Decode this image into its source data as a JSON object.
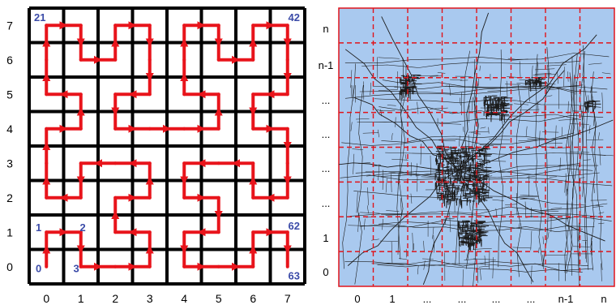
{
  "left_diagram": {
    "y_labels": [
      "7",
      "6",
      "5",
      "4",
      "3",
      "2",
      "1",
      "0"
    ],
    "x_labels": [
      "0",
      "1",
      "2",
      "3",
      "4",
      "5",
      "6",
      "7"
    ],
    "cell_numbers": [
      {
        "text": "21",
        "cell": [
          0,
          7
        ]
      },
      {
        "text": "42",
        "cell": [
          7,
          7
        ]
      },
      {
        "text": "1",
        "cell": [
          0,
          1
        ]
      },
      {
        "text": "2",
        "cell": [
          1,
          1
        ]
      },
      {
        "text": "0",
        "cell": [
          0,
          0
        ]
      },
      {
        "text": "3",
        "cell": [
          1,
          0
        ]
      },
      {
        "text": "62",
        "cell": [
          7,
          1
        ]
      },
      {
        "text": "63",
        "cell": [
          7,
          0
        ]
      }
    ],
    "colors": {
      "grid": "#000000",
      "curve": "#e8141b",
      "numbers": "#3b4ba8"
    }
  },
  "right_diagram": {
    "y_labels": [
      "n",
      "n-1",
      "...",
      "...",
      "...",
      "...",
      "1",
      "0"
    ],
    "x_labels": [
      "0",
      "1",
      "...",
      "...",
      "...",
      "...",
      "n-1",
      "n"
    ],
    "colors": {
      "background": "#a9c9ef",
      "roads": "#1c1c1c",
      "grid": "#e0141b"
    }
  }
}
